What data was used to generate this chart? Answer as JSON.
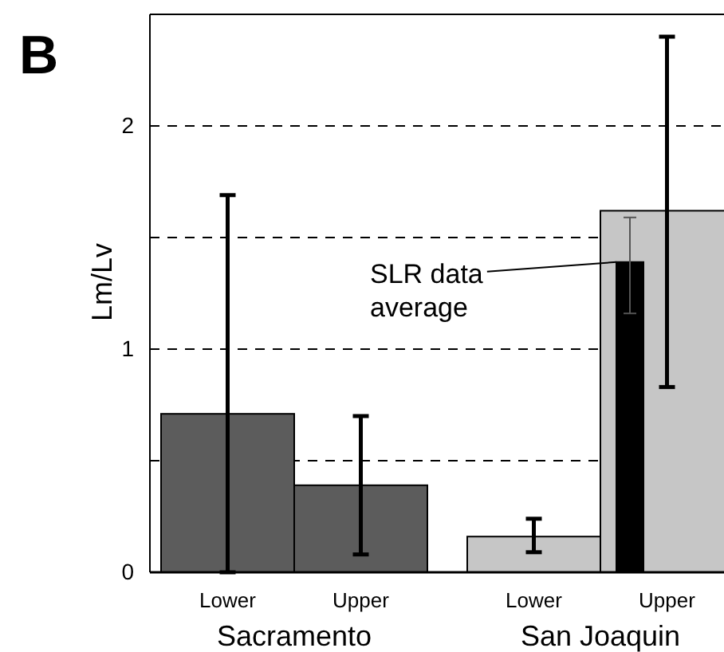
{
  "chart_data": {
    "type": "bar",
    "title": "B",
    "ylabel": "Lm/Lv",
    "categories": [
      "Lower",
      "Upper",
      "Lower",
      "Upper"
    ],
    "series": [
      {
        "colors": [
          "#5c5c5c",
          "#5c5c5c",
          "#c6c6c6",
          "#c6c6c6"
        ],
        "values": [
          0.71,
          0.39,
          0.16,
          1.62
        ],
        "errors": [
          [
            0,
            1.69
          ],
          [
            0.08,
            0.7
          ],
          [
            0.09,
            0.24
          ],
          [
            0.83,
            2.4
          ]
        ]
      },
      {
        "color": "#000000",
        "values": [
          null,
          null,
          null,
          1.39
        ],
        "errors": [
          null,
          null,
          null,
          [
            1.16,
            1.59
          ]
        ]
      }
    ],
    "ylim": [
      0,
      2.5
    ],
    "yticks": [
      0,
      {
        "value": 0.5,
        "label": null
      },
      1,
      {
        "value": 1.5,
        "label": null
      },
      2
    ],
    "grid": "y",
    "annotations": [
      "SLR data average",
      "Sacramento",
      "San Joaquin"
    ]
  }
}
